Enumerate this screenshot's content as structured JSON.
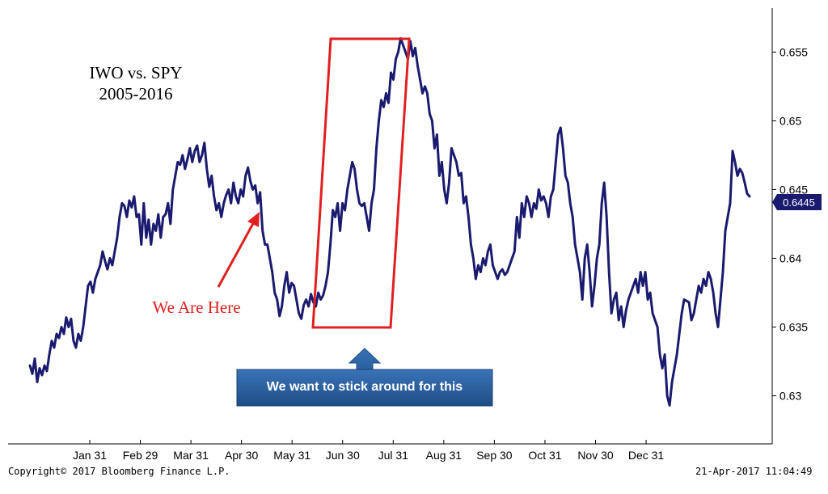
{
  "chart_data": {
    "type": "line",
    "title": "IWO vs. SPY",
    "subtitle": "2005-2016",
    "x_tick_labels": [
      "Jan 31",
      "Feb 29",
      "Mar 31",
      "Apr 30",
      "May 31",
      "Jun 30",
      "Jul 31",
      "Aug 31",
      "Sep 30",
      "Oct 31",
      "Nov 30",
      "Dec 31"
    ],
    "y_tick_labels": [
      "0.655",
      "0.65",
      "0.645",
      "0.64",
      "0.635",
      "0.63"
    ],
    "ylim": [
      0.6265,
      0.6582
    ],
    "grid": false,
    "line_color": "#1a1a6e",
    "last_value_label": "0.6445",
    "series": [
      {
        "values": [
          0.6322,
          0.6316,
          0.6327,
          0.631,
          0.632,
          0.6315,
          0.6322,
          0.6318,
          0.633,
          0.634,
          0.6335,
          0.6345,
          0.6342,
          0.635,
          0.6345,
          0.6357,
          0.635,
          0.6356,
          0.634,
          0.6335,
          0.6345,
          0.634,
          0.635,
          0.6365,
          0.638,
          0.6383,
          0.6375,
          0.6385,
          0.639,
          0.6395,
          0.6405,
          0.6398,
          0.6392,
          0.64,
          0.6395,
          0.6405,
          0.6415,
          0.643,
          0.644,
          0.6438,
          0.643,
          0.6442,
          0.6437,
          0.6445,
          0.643,
          0.6432,
          0.641,
          0.644,
          0.6415,
          0.6428,
          0.641,
          0.6425,
          0.642,
          0.6432,
          0.6415,
          0.643,
          0.6432,
          0.644,
          0.6425,
          0.645,
          0.646,
          0.647,
          0.6468,
          0.6475,
          0.6465,
          0.6472,
          0.648,
          0.647,
          0.6478,
          0.6482,
          0.647,
          0.6475,
          0.6484,
          0.6465,
          0.6452,
          0.646,
          0.6445,
          0.6435,
          0.644,
          0.643,
          0.644,
          0.6446,
          0.645,
          0.644,
          0.6455,
          0.6445,
          0.644,
          0.645,
          0.6445,
          0.646,
          0.6466,
          0.6456,
          0.645,
          0.6453,
          0.644,
          0.6448,
          0.642,
          0.641,
          0.641,
          0.64,
          0.639,
          0.6375,
          0.637,
          0.6358,
          0.6365,
          0.638,
          0.639,
          0.6375,
          0.6382,
          0.638,
          0.637,
          0.636,
          0.6356,
          0.6366,
          0.637,
          0.6365,
          0.6374,
          0.6368,
          0.6365,
          0.6375,
          0.637,
          0.6373,
          0.638,
          0.639,
          0.641,
          0.6435,
          0.643,
          0.644,
          0.642,
          0.644,
          0.6435,
          0.645,
          0.646,
          0.647,
          0.6465,
          0.645,
          0.644,
          0.6438,
          0.644,
          0.643,
          0.642,
          0.644,
          0.645,
          0.648,
          0.65,
          0.6515,
          0.651,
          0.652,
          0.6513,
          0.6535,
          0.653,
          0.6545,
          0.655,
          0.656,
          0.6555,
          0.655,
          0.6545,
          0.6558,
          0.6547,
          0.6553,
          0.654,
          0.653,
          0.652,
          0.6525,
          0.652,
          0.6505,
          0.65,
          0.648,
          0.649,
          0.646,
          0.647,
          0.645,
          0.644,
          0.6455,
          0.648,
          0.6475,
          0.647,
          0.646,
          0.6462,
          0.644,
          0.6445,
          0.643,
          0.641,
          0.64,
          0.6385,
          0.6395,
          0.639,
          0.64,
          0.6395,
          0.6405,
          0.641,
          0.6395,
          0.639,
          0.6385,
          0.639,
          0.6392,
          0.6388,
          0.639,
          0.6395,
          0.64,
          0.6405,
          0.643,
          0.6415,
          0.644,
          0.643,
          0.6445,
          0.644,
          0.643,
          0.644,
          0.6436,
          0.645,
          0.6442,
          0.6445,
          0.644,
          0.643,
          0.6445,
          0.645,
          0.647,
          0.649,
          0.6495,
          0.648,
          0.646,
          0.6455,
          0.644,
          0.643,
          0.641,
          0.64,
          0.639,
          0.637,
          0.64,
          0.641,
          0.639,
          0.6365,
          0.638,
          0.64,
          0.641,
          0.644,
          0.6455,
          0.643,
          0.639,
          0.636,
          0.637,
          0.6375,
          0.6355,
          0.6365,
          0.635,
          0.6362,
          0.637,
          0.6375,
          0.638,
          0.6385,
          0.6375,
          0.639,
          0.638,
          0.639,
          0.637,
          0.6375,
          0.636,
          0.6355,
          0.635,
          0.633,
          0.632,
          0.633,
          0.63,
          0.6293,
          0.631,
          0.632,
          0.633,
          0.6345,
          0.636,
          0.637,
          0.6369,
          0.6368,
          0.6355,
          0.636,
          0.637,
          0.638,
          0.6375,
          0.6385,
          0.638,
          0.639,
          0.6385,
          0.6375,
          0.636,
          0.635,
          0.637,
          0.639,
          0.642,
          0.643,
          0.644,
          0.6478,
          0.647,
          0.646,
          0.6465,
          0.6462,
          0.6455,
          0.6447,
          0.6445
        ]
      }
    ],
    "annotations": {
      "callout_text": "We Are Here",
      "callout_color": "#e02020",
      "box_color": "#e02020",
      "banner_text": "We want to stick around for this",
      "banner_color": "#2a5f9e"
    }
  },
  "footer": {
    "copyright": "Copyright© 2017 Bloomberg Finance L.P.",
    "timestamp": "21-Apr-2017 11:04:49"
  }
}
